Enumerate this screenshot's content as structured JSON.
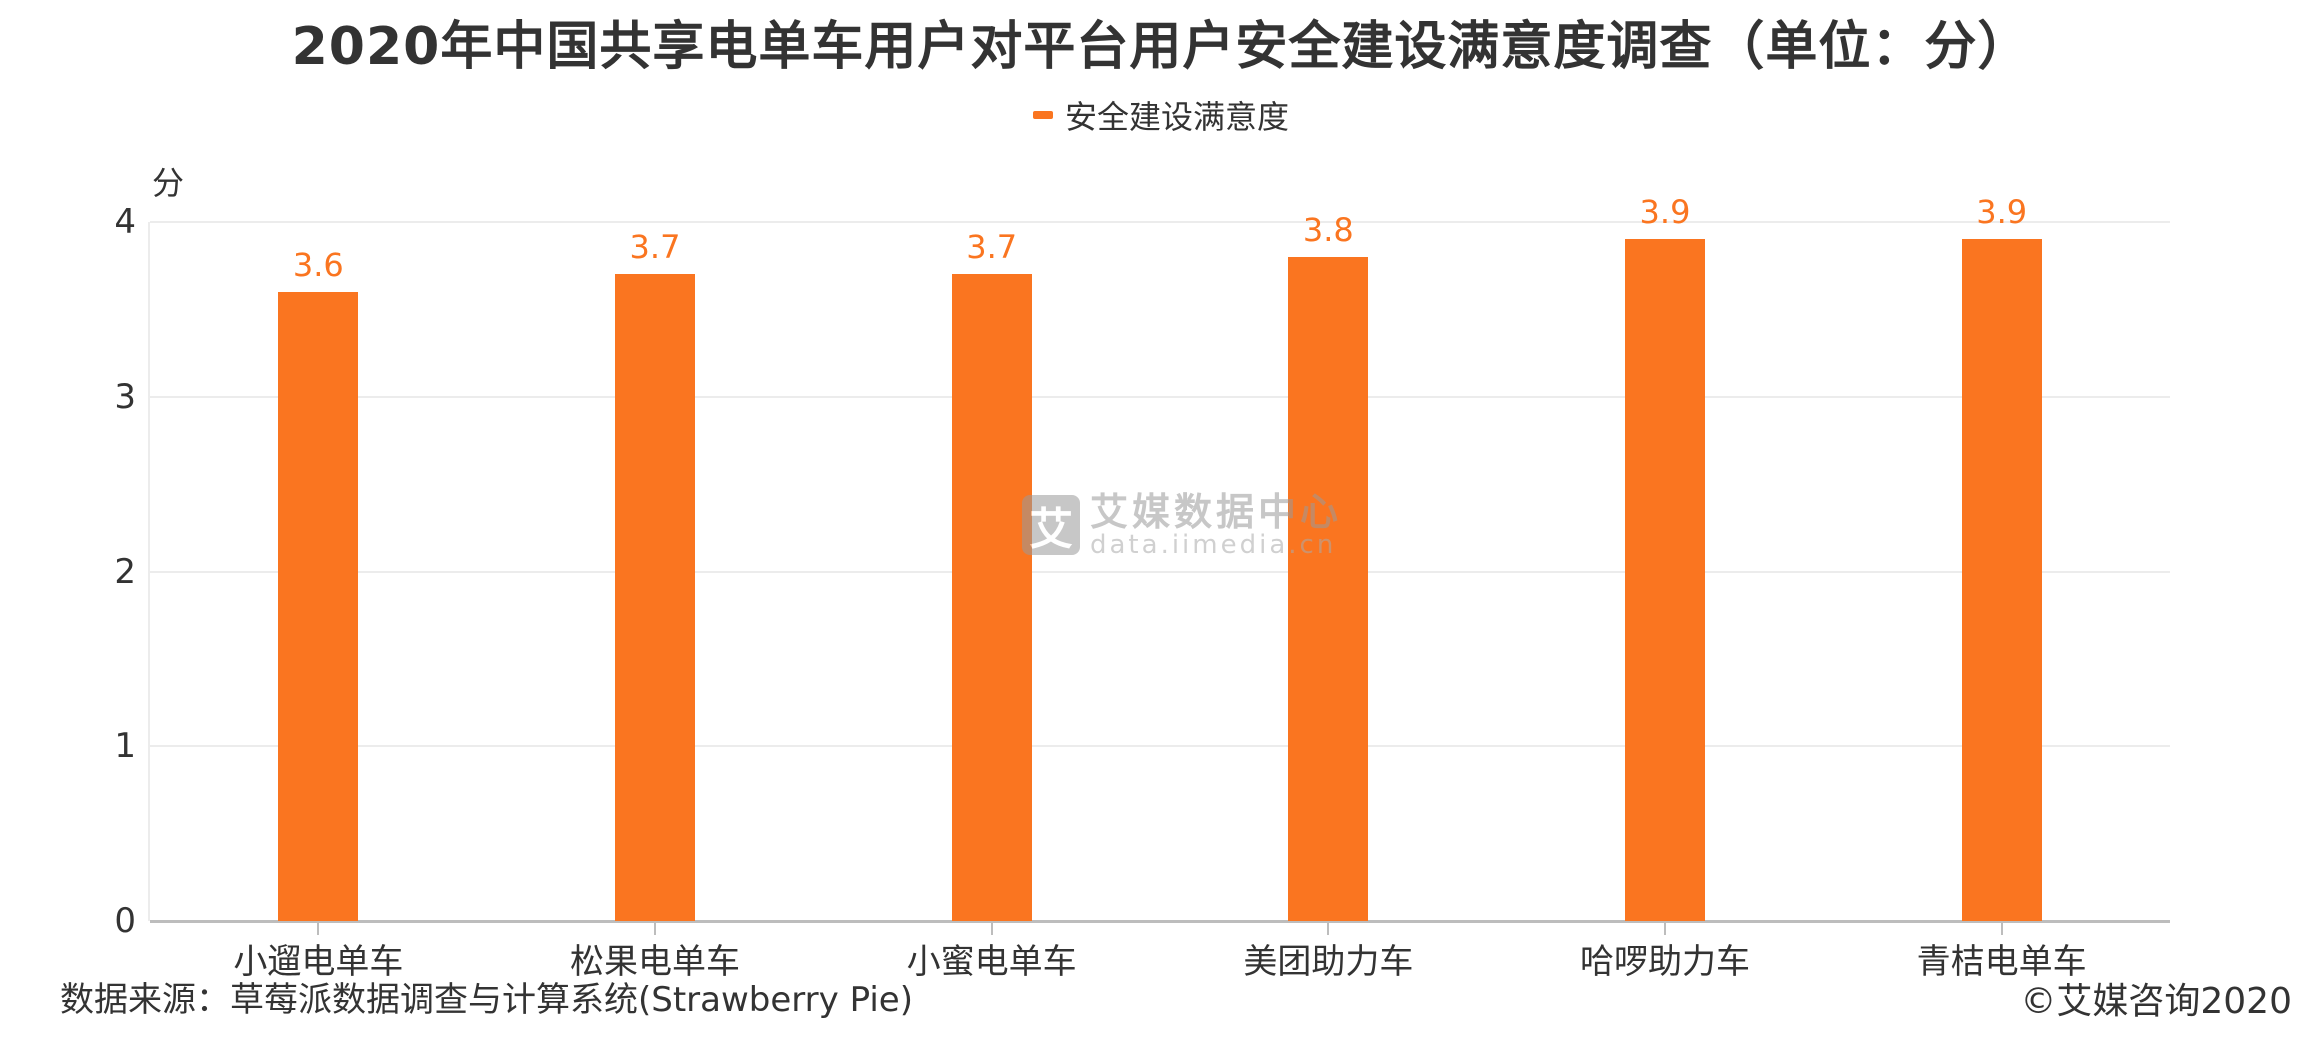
{
  "title": "2020年中国共享电单车用户对平台用户安全建设满意度调查（单位：分）",
  "legend": [
    {
      "label": "安全建设满意度",
      "color": "#fa7520"
    }
  ],
  "y_unit": "分",
  "y_ticks": [
    "0",
    "1",
    "2",
    "3",
    "4"
  ],
  "bar_color": "#fa7520",
  "source": "数据来源：草莓派数据调查与计算系统(Strawberry Pie)",
  "copyright": "©艾媒咨询2020",
  "watermark": {
    "logo": "艾",
    "name": "艾媒数据中心",
    "url": "data.iimedia.cn"
  },
  "chart_data": {
    "type": "bar",
    "title": "2020年中国共享电单车用户对平台用户安全建设满意度调查（单位：分）",
    "xlabel": "",
    "ylabel": "分",
    "ylim": [
      0,
      4
    ],
    "grid": true,
    "legend_position": "top",
    "categories": [
      "小遛电单车",
      "松果电单车",
      "小蜜电单车",
      "美团助力车",
      "哈啰助力车",
      "青桔电单车"
    ],
    "series": [
      {
        "name": "安全建设满意度",
        "values": [
          3.6,
          3.7,
          3.7,
          3.8,
          3.9,
          3.9
        ],
        "labels": [
          "3.6",
          "3.7",
          "3.7",
          "3.8",
          "3.9",
          "3.9"
        ]
      }
    ]
  }
}
